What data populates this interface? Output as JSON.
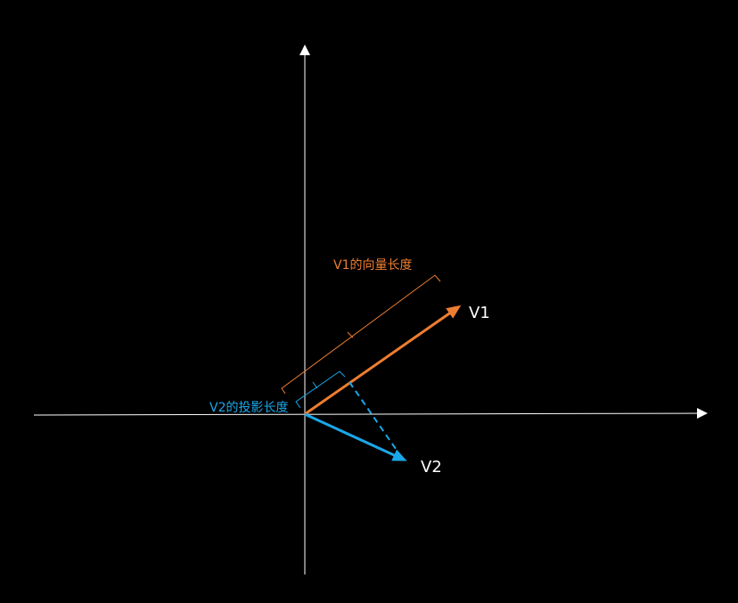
{
  "colors": {
    "background": "#000000",
    "axis": "#FFFFFF",
    "v1": "#ED7D31",
    "v2": "#1AA7E8",
    "text_main": "#FFFFFF"
  },
  "vectors": {
    "v1": {
      "label": "V1"
    },
    "v2": {
      "label": "V2"
    }
  },
  "annotations": {
    "v1_length": "V1的向量长度",
    "v2_projection_length": "V2的投影长度"
  }
}
